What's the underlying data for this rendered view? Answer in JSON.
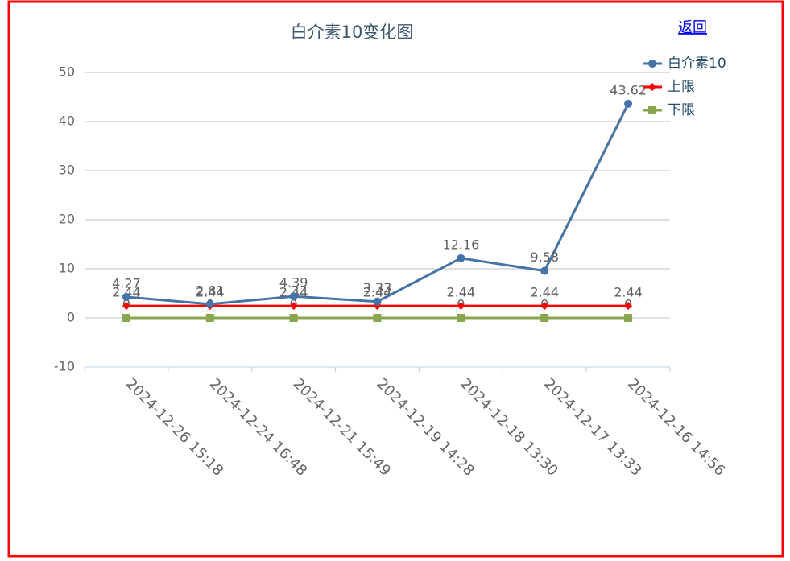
{
  "chart_data": {
    "type": "line",
    "title": "白介素10变化图",
    "link": "返回",
    "categories": [
      "2024-12-26 15:18",
      "2024-12-24 16:48",
      "2024-12-21 15:49",
      "2024-12-19 14:28",
      "2024-12-18 13:30",
      "2024-12-17 13:33",
      "2024-12-16 14:56"
    ],
    "series": [
      {
        "name": "白介素10",
        "color": "#4572a7",
        "marker": "circle",
        "values": [
          4.27,
          2.81,
          4.39,
          3.33,
          12.16,
          9.58,
          43.62
        ]
      },
      {
        "name": "上限",
        "color": "#ff0000",
        "marker": "diamond",
        "values": [
          2.44,
          2.44,
          2.44,
          2.44,
          2.44,
          2.44,
          2.44
        ]
      },
      {
        "name": "下限",
        "color": "#89a54e",
        "marker": "square",
        "values": [
          0,
          0,
          0,
          0,
          0,
          0,
          0
        ]
      }
    ],
    "ylim": [
      -10,
      50
    ],
    "yticks": [
      -10,
      0,
      10,
      20,
      30,
      40,
      50
    ],
    "grid": true,
    "legend": "top-right"
  }
}
